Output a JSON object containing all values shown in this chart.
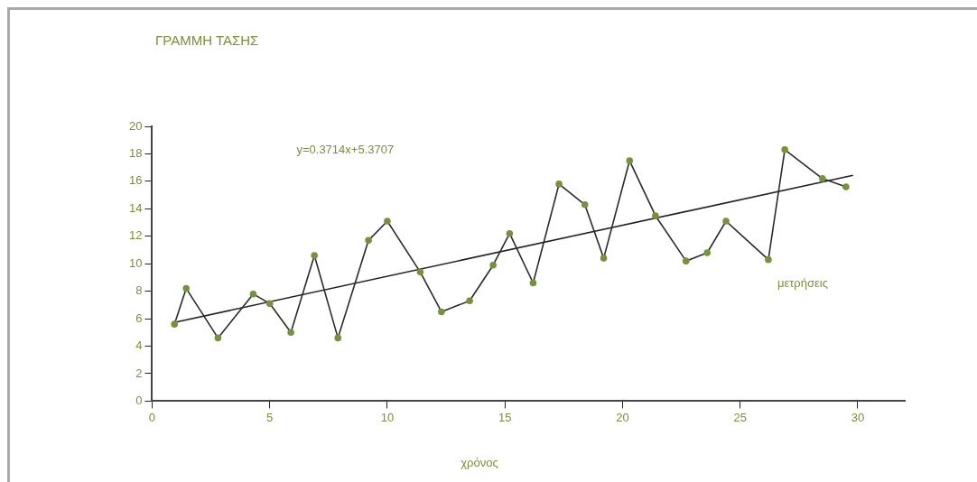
{
  "chart_data": {
    "type": "line",
    "title": "ΓΡΑΜΜΗ ΤΑΣΗΣ",
    "xlabel": "χρόνος",
    "xlim": [
      0,
      32
    ],
    "xticks": [
      0,
      5,
      10,
      15,
      20,
      25,
      30
    ],
    "ylim": [
      0,
      20
    ],
    "yticks": [
      0,
      2,
      4,
      6,
      8,
      10,
      12,
      14,
      16,
      18,
      20
    ],
    "annotations": [
      "y=0.3714x+5.3707"
    ],
    "grid": false,
    "legend": false,
    "marker": "circle",
    "line_style": "solid",
    "series": [
      {
        "name": "μετρήσεις",
        "color": "#76923c",
        "x": [
          0.95,
          1.45,
          2.8,
          4.3,
          5.0,
          5.9,
          6.9,
          7.9,
          9.2,
          10.0,
          11.4,
          12.3,
          13.5,
          14.5,
          15.2,
          16.2,
          17.3,
          18.4,
          19.2,
          20.3,
          21.4,
          22.7,
          23.6,
          24.4,
          26.2,
          26.9,
          28.5,
          29.5
        ],
        "values": [
          5.6,
          8.2,
          4.6,
          7.8,
          7.1,
          5.0,
          10.6,
          4.6,
          11.7,
          13.1,
          9.4,
          6.5,
          7.3,
          9.9,
          12.2,
          8.6,
          15.8,
          14.3,
          10.4,
          17.5,
          13.5,
          10.2,
          10.8,
          13.1,
          10.3,
          18.3,
          16.2,
          15.6
        ]
      },
      {
        "color": "#222222",
        "marker": "none",
        "x": [
          0.9,
          29.8
        ],
        "values": [
          5.71,
          16.44
        ]
      }
    ]
  }
}
